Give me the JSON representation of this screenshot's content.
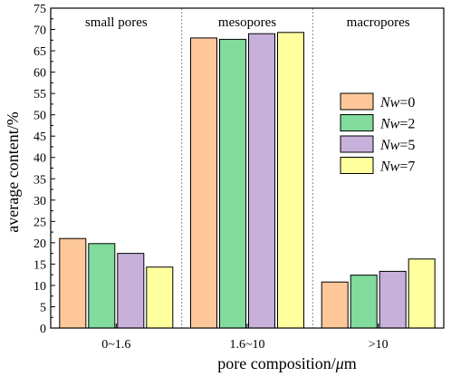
{
  "chart_data": {
    "type": "bar",
    "categories": [
      "0~1.6",
      "1.6~10",
      ">10"
    ],
    "region_labels": [
      "small pores",
      "mesopores",
      "macropores"
    ],
    "series": [
      {
        "name_italic": "Nw",
        "name_suffix": "=0",
        "color": "#FDC79A",
        "values": [
          21.0,
          68.0,
          10.8
        ]
      },
      {
        "name_italic": "Nw",
        "name_suffix": "=2",
        "color": "#80DB9C",
        "values": [
          19.8,
          67.7,
          12.4
        ]
      },
      {
        "name_italic": "Nw",
        "name_suffix": "=5",
        "color": "#C7B1DA",
        "values": [
          17.5,
          69.0,
          13.3
        ]
      },
      {
        "name_italic": "Nw",
        "name_suffix": "=7",
        "color": "#FFFF9D",
        "values": [
          14.3,
          69.3,
          16.2
        ]
      }
    ],
    "xlabel_prefix": "pore composition/",
    "xlabel_italic": "μ",
    "xlabel_suffix": "m",
    "ylabel": "average content/%",
    "ylim": [
      0,
      75
    ],
    "yticks": [
      0,
      5,
      10,
      15,
      20,
      25,
      30,
      35,
      40,
      45,
      50,
      55,
      60,
      65,
      70,
      75
    ],
    "grid": false,
    "separators": "dotted",
    "legend_position": "right-middle"
  }
}
